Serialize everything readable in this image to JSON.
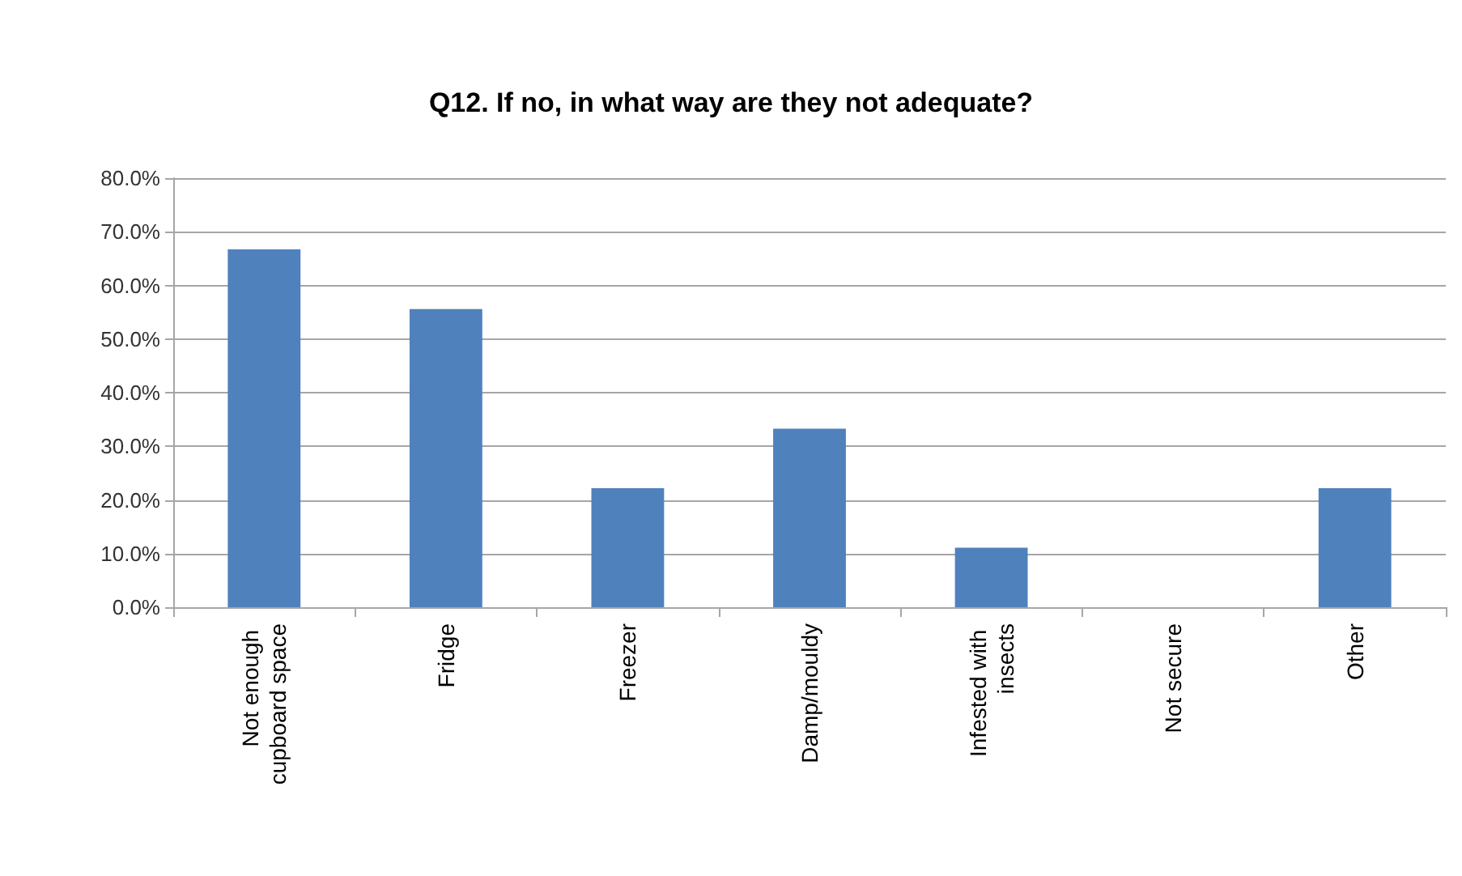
{
  "chart_data": {
    "type": "bar",
    "title": "Q12. If no, in what way are they not adequate?",
    "categories": [
      "Not enough cupboard space",
      "Fridge",
      "Freezer",
      "Damp/mouldy",
      "Infested with insects",
      "Not secure",
      "Other"
    ],
    "values": [
      66.7,
      55.6,
      22.2,
      33.3,
      11.1,
      0,
      22.2
    ],
    "color": "#4f81bd",
    "ylim": [
      0,
      80
    ],
    "yticks": [
      {
        "value": 0,
        "label": "0.0%"
      },
      {
        "value": 10,
        "label": "10.0%"
      },
      {
        "value": 20,
        "label": "20.0%"
      },
      {
        "value": 30,
        "label": "30.0%"
      },
      {
        "value": 40,
        "label": "40.0%"
      },
      {
        "value": 50,
        "label": "50.0%"
      },
      {
        "value": 60,
        "label": "60.0%"
      },
      {
        "value": 70,
        "label": "70.0%"
      },
      {
        "value": 80,
        "label": "80.0%"
      }
    ],
    "grid": "y"
  }
}
